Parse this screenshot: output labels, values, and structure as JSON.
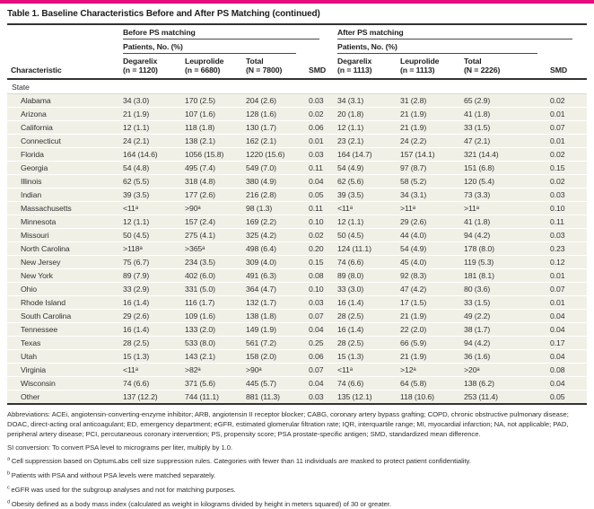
{
  "accent_color": "#e50c7e",
  "title": "Table 1. Baseline Characteristics Before and After PS Matching (continued)",
  "header": {
    "characteristic_label": "Characteristic",
    "before": {
      "group_label": "Before PS matching",
      "patients_label": "Patients, No. (%)",
      "columns": [
        [
          "Degarelix",
          "(n = 1120)"
        ],
        [
          "Leuprolide",
          "(n = 6680)"
        ],
        [
          "Total",
          "(N = 7800)"
        ]
      ],
      "smd_label": "SMD"
    },
    "after": {
      "group_label": "After PS matching",
      "patients_label": "Patients, No. (%)",
      "columns": [
        [
          "Degarelix",
          "(n = 1113)"
        ],
        [
          "Leuprolide",
          "(n = 1113)"
        ],
        [
          "Total",
          "(N = 2226)"
        ]
      ],
      "smd_label": "SMD"
    }
  },
  "section_label": "State",
  "rows": [
    {
      "name": "Alabama",
      "values": [
        "34 (3.0)",
        "170 (2.5)",
        "204 (2.6)",
        "0.03",
        "34 (3.1)",
        "31 (2.8)",
        "65 (2.9)",
        "0.02"
      ]
    },
    {
      "name": "Arizona",
      "values": [
        "21 (1.9)",
        "107 (1.6)",
        "128 (1.6)",
        "0.02",
        "20 (1.8)",
        "21 (1.9)",
        "41 (1.8)",
        "0.01"
      ]
    },
    {
      "name": "California",
      "values": [
        "12 (1.1)",
        "118 (1.8)",
        "130 (1.7)",
        "0.06",
        "12 (1.1)",
        "21 (1.9)",
        "33 (1.5)",
        "0.07"
      ]
    },
    {
      "name": "Connecticut",
      "values": [
        "24 (2.1)",
        "138 (2.1)",
        "162 (2.1)",
        "0.01",
        "23 (2.1)",
        "24 (2.2)",
        "47 (2.1)",
        "0.01"
      ]
    },
    {
      "name": "Florida",
      "values": [
        "164 (14.6)",
        "1056 (15.8)",
        "1220 (15.6)",
        "0.03",
        "164 (14.7)",
        "157 (14.1)",
        "321 (14.4)",
        "0.02"
      ]
    },
    {
      "name": "Georgia",
      "values": [
        "54 (4.8)",
        "495 (7.4)",
        "549 (7.0)",
        "0.11",
        "54 (4.9)",
        "97 (8.7)",
        "151 (6.8)",
        "0.15"
      ]
    },
    {
      "name": "Illinois",
      "values": [
        "62 (5.5)",
        "318 (4.8)",
        "380 (4.9)",
        "0.04",
        "62 (5.6)",
        "58 (5.2)",
        "120 (5.4)",
        "0.02"
      ]
    },
    {
      "name": "Indian",
      "values": [
        "39 (3.5)",
        "177 (2.6)",
        "216 (2.8)",
        "0.05",
        "39 (3.5)",
        "34 (3.1)",
        "73 (3.3)",
        "0.03"
      ]
    },
    {
      "name": "Massachusetts",
      "values": [
        "<11ᵃ",
        ">90ᵃ",
        "98 (1.3)",
        "0.11",
        "<11ᵃ",
        ">11ᵃ",
        ">11ᵃ",
        "0.10"
      ]
    },
    {
      "name": "Minnesota",
      "values": [
        "12 (1.1)",
        "157 (2.4)",
        "169 (2.2)",
        "0.10",
        "12 (1.1)",
        "29 (2.6)",
        "41 (1.8)",
        "0.11"
      ]
    },
    {
      "name": "Missouri",
      "values": [
        "50 (4.5)",
        "275 (4.1)",
        "325 (4.2)",
        "0.02",
        "50 (4.5)",
        "44 (4.0)",
        "94 (4.2)",
        "0.03"
      ]
    },
    {
      "name": "North Carolina",
      "values": [
        ">118ᵃ",
        ">365ᵃ",
        "498 (6.4)",
        "0.20",
        "124 (11.1)",
        "54 (4.9)",
        "178 (8.0)",
        "0.23"
      ]
    },
    {
      "name": "New Jersey",
      "values": [
        "75 (6.7)",
        "234 (3.5)",
        "309 (4.0)",
        "0.15",
        "74 (6.6)",
        "45 (4.0)",
        "119 (5.3)",
        "0.12"
      ]
    },
    {
      "name": "New York",
      "values": [
        "89 (7.9)",
        "402 (6.0)",
        "491 (6.3)",
        "0.08",
        "89 (8.0)",
        "92 (8.3)",
        "181 (8.1)",
        "0.01"
      ]
    },
    {
      "name": "Ohio",
      "values": [
        "33 (2.9)",
        "331 (5.0)",
        "364 (4.7)",
        "0.10",
        "33 (3.0)",
        "47 (4.2)",
        "80 (3.6)",
        "0.07"
      ]
    },
    {
      "name": "Rhode Island",
      "values": [
        "16 (1.4)",
        "116 (1.7)",
        "132 (1.7)",
        "0.03",
        "16 (1.4)",
        "17 (1.5)",
        "33 (1.5)",
        "0.01"
      ]
    },
    {
      "name": "South Carolina",
      "values": [
        "29 (2.6)",
        "109 (1.6)",
        "138 (1.8)",
        "0.07",
        "28 (2.5)",
        "21 (1.9)",
        "49 (2.2)",
        "0.04"
      ]
    },
    {
      "name": "Tennessee",
      "values": [
        "16 (1.4)",
        "133 (2.0)",
        "149 (1.9)",
        "0.04",
        "16 (1.4)",
        "22 (2.0)",
        "38 (1.7)",
        "0.04"
      ]
    },
    {
      "name": "Texas",
      "values": [
        "28 (2.5)",
        "533 (8.0)",
        "561 (7.2)",
        "0.25",
        "28 (2.5)",
        "66 (5.9)",
        "94 (4.2)",
        "0.17"
      ]
    },
    {
      "name": "Utah",
      "values": [
        "15 (1.3)",
        "143 (2.1)",
        "158 (2.0)",
        "0.06",
        "15 (1.3)",
        "21 (1.9)",
        "36 (1.6)",
        "0.04"
      ]
    },
    {
      "name": "Virginia",
      "values": [
        "<11ᵃ",
        ">82ᵃ",
        ">90ᵃ",
        "0.07",
        "<11ᵃ",
        ">12ᵃ",
        ">20ᵃ",
        "0.08"
      ]
    },
    {
      "name": "Wisconsin",
      "values": [
        "74 (6.6)",
        "371 (5.6)",
        "445 (5.7)",
        "0.04",
        "74 (6.6)",
        "64 (5.8)",
        "138 (6.2)",
        "0.04"
      ]
    },
    {
      "name": "Other",
      "values": [
        "137 (12.2)",
        "744 (11.1)",
        "881 (11.3)",
        "0.03",
        "135 (12.1)",
        "118 (10.6)",
        "253 (11.4)",
        "0.05"
      ]
    }
  ],
  "footer": {
    "abbreviations": "Abbreviations: ACEi, angiotensin-converting-enzyme inhibitor; ARB, angiotensin II receptor blocker; CABG, coronary artery bypass grafting; COPD, chronic obstructive pulmonary disease; DOAC, direct-acting oral anticoagulant; ED, emergency department; eGFR, estimated glomerular filtration rate; IQR, interquartile range; MI, myocardial infarction; NA, not applicable; PAD, peripheral artery disease; PCI, percutaneous coronary intervention; PS, propensity score; PSA prostate-specific antigen; SMD, standardized mean difference.",
    "si_conversion": "SI conversion: To convert PSA level to micrograms per liter, multiply by 1.0.",
    "notes": [
      {
        "marker": "a",
        "text": "Cell suppression based on OptumLabs cell size suppression rules. Categories with fewer than 11 individuals are masked to protect patient confidentiality."
      },
      {
        "marker": "b",
        "text": "Patients with PSA and without PSA levels were matched separately."
      },
      {
        "marker": "c",
        "text": "eGFR was used for the subgroup analyses and not for matching purposes."
      },
      {
        "marker": "d",
        "text": "Obesity defined as a body mass index (calculated as weight in kilograms divided by height in meters squared) of 30 or greater."
      }
    ]
  }
}
